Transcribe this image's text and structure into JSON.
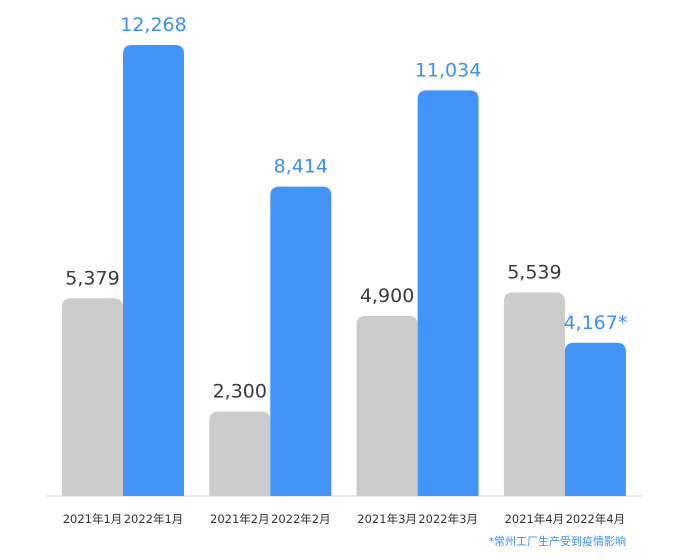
{
  "colors": {
    "y2021": "#cccccc",
    "y2022": "#4294f6",
    "label2021": "#3b3b3b",
    "label2022": "#3d8ff3",
    "axis": "#d6d6d6"
  },
  "chart_data": {
    "type": "bar",
    "grouped": true,
    "categories": [
      "1月",
      "2月",
      "3月",
      "4月"
    ],
    "series": [
      {
        "key": "y2021",
        "values": [
          5379,
          2300,
          4900,
          5539
        ],
        "data_labels": [
          "5,379",
          "2,300",
          "4,900",
          "5,539"
        ],
        "x_labels": [
          "2021年1月",
          "2021年2月",
          "2021年3月",
          "2021年4月"
        ]
      },
      {
        "key": "y2022",
        "values": [
          12268,
          8414,
          11034,
          4167
        ],
        "data_labels": [
          "12,268",
          "8,414",
          "11,034",
          "4,167*"
        ],
        "x_labels": [
          "2022年1月",
          "2022年2月",
          "2022年3月",
          "2022年4月"
        ]
      }
    ],
    "ylim": [
      0,
      12268
    ],
    "grid": false,
    "legend": "none",
    "footnote": "*常州工厂生产受到疫情影响"
  }
}
